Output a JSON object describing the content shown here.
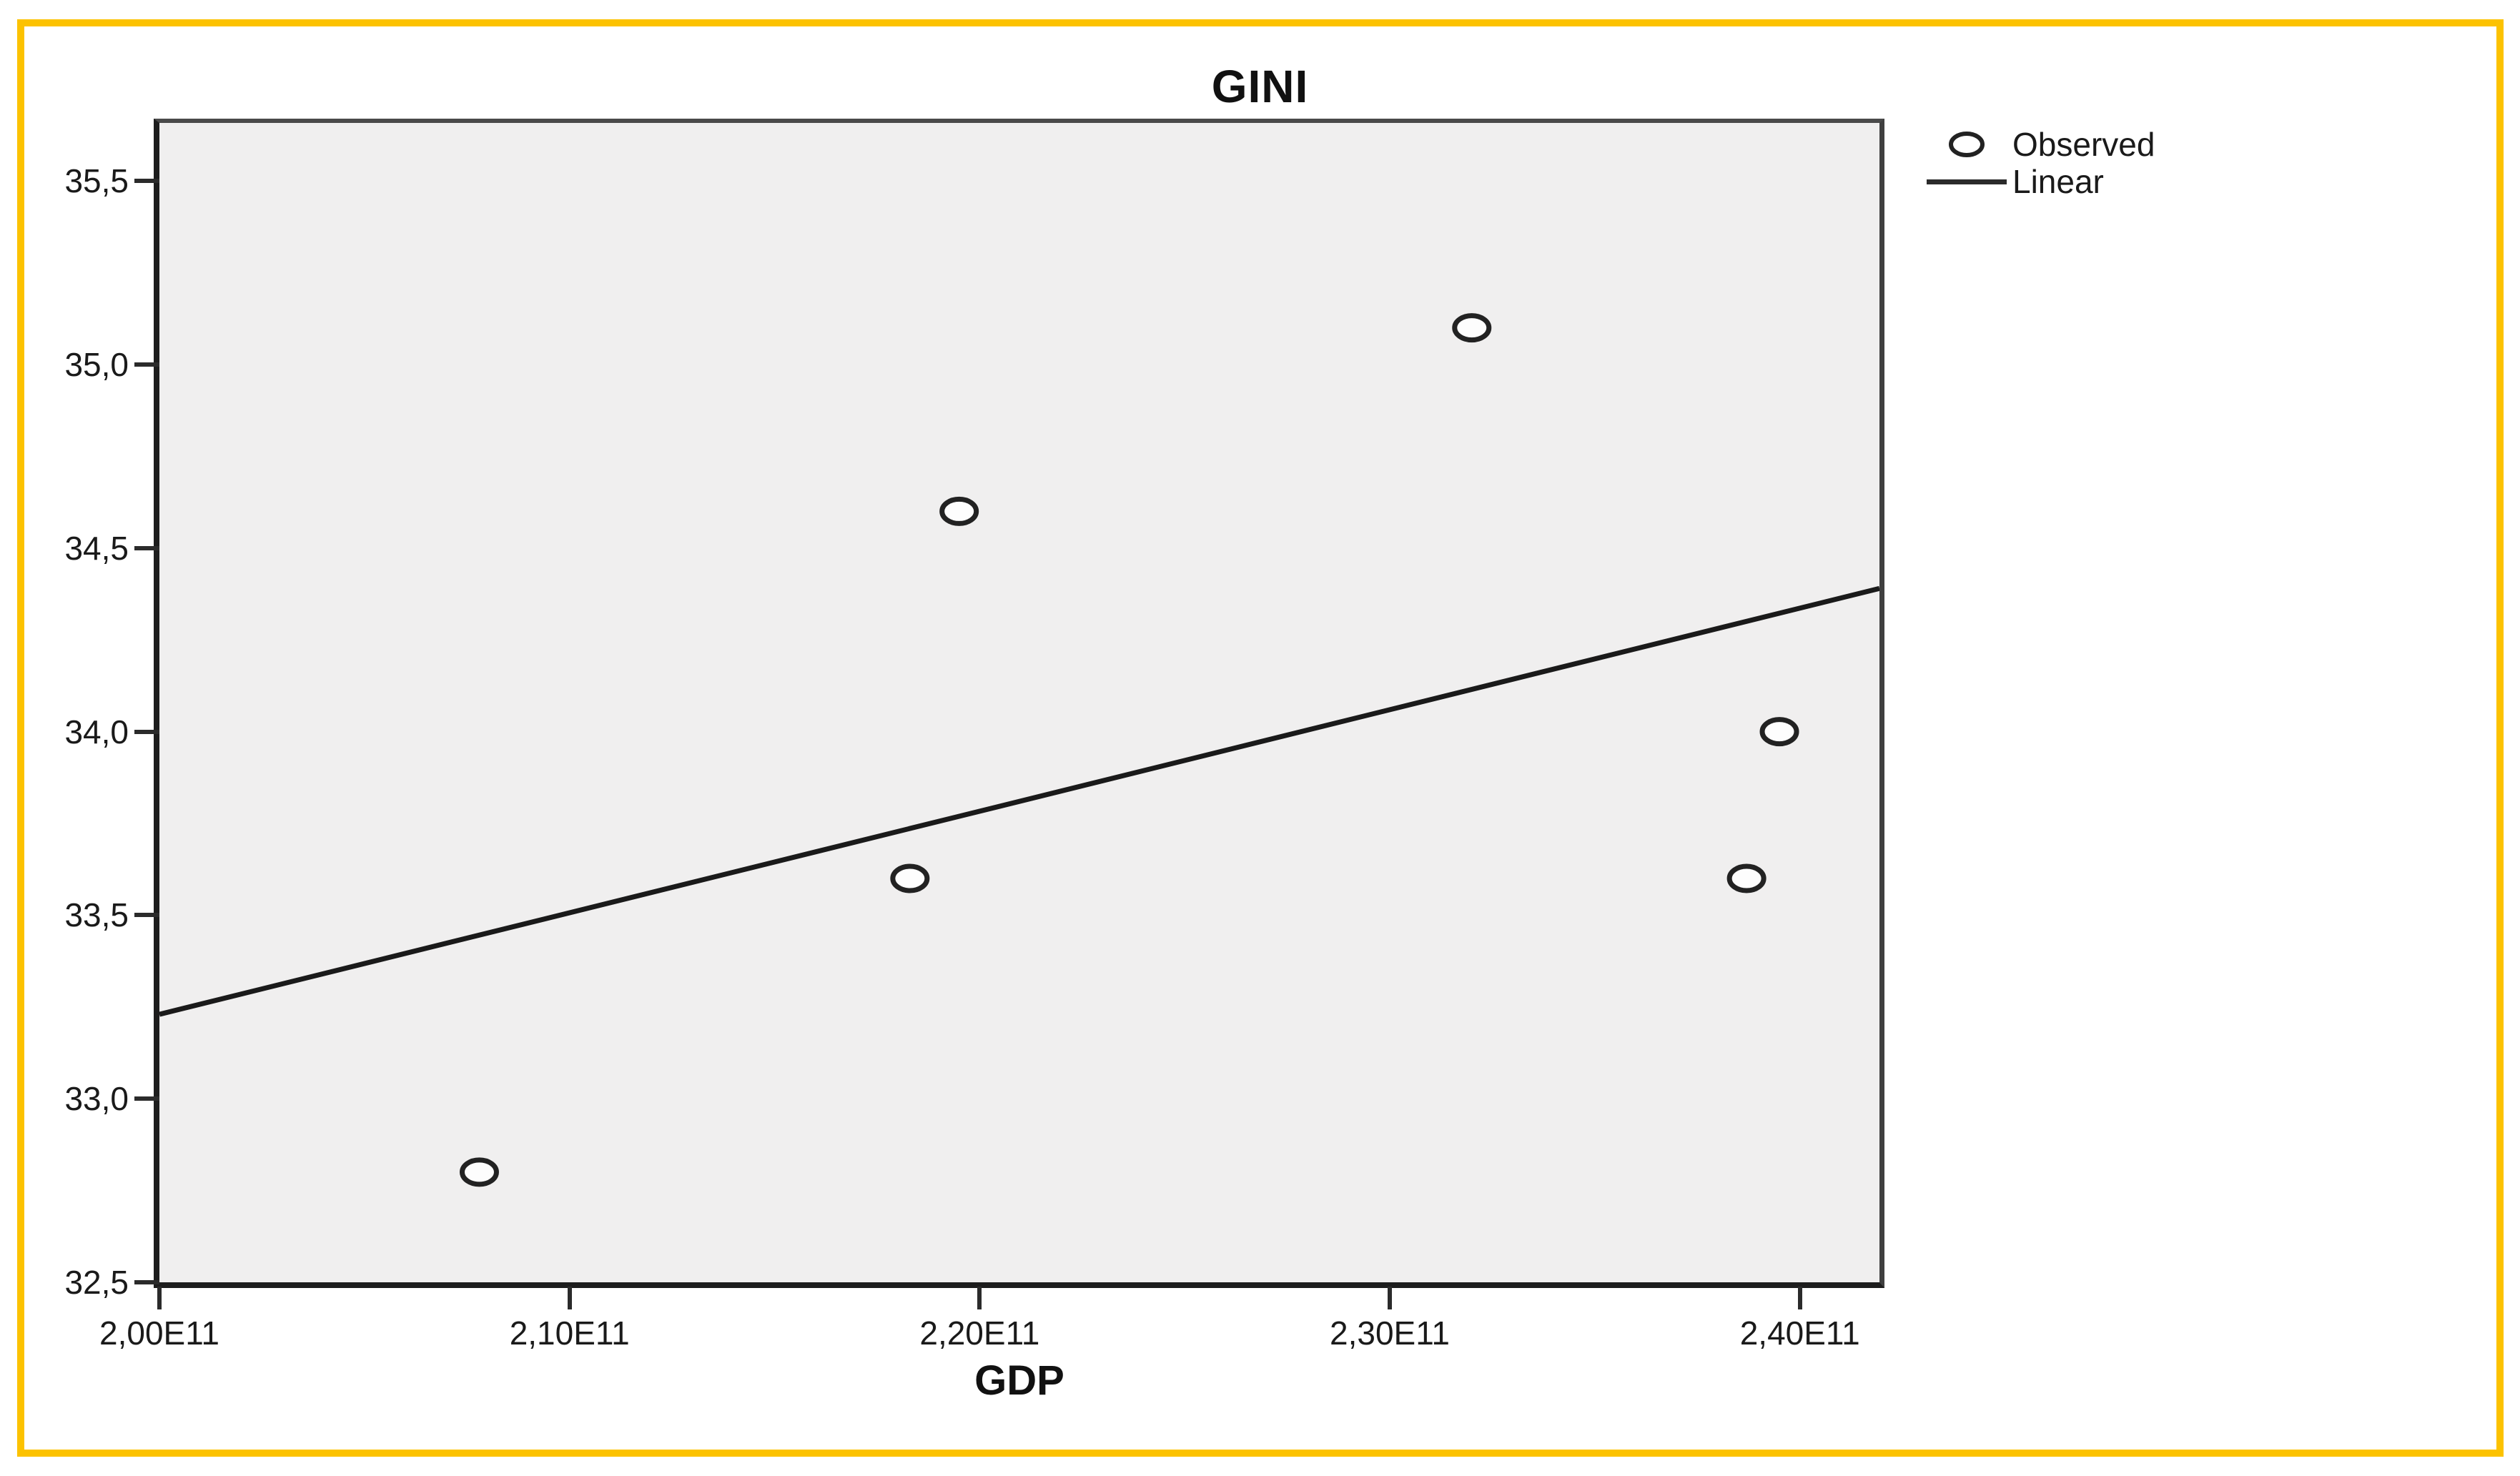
{
  "figure": {
    "border_color": "#FCC200",
    "background": "#FFFFFF",
    "plot_background": "#F0EFEF"
  },
  "chart": {
    "title": "GINI",
    "xlabel": "GDP"
  },
  "legend": {
    "items": [
      {
        "label": "Observed",
        "marker": "open-circle"
      },
      {
        "label": "Linear",
        "marker": "line"
      }
    ]
  },
  "chart_data": {
    "type": "scatter",
    "title": "GINI",
    "xlabel": "GDP",
    "ylabel": "",
    "x_unit": "E11",
    "decimal_separator": ",",
    "grid": false,
    "legend_position": "top-right-outside",
    "xlim_e11": [
      2.0,
      2.4194
    ],
    "ylim": [
      32.5,
      35.658
    ],
    "x_ticks": [
      {
        "value": 2.0,
        "label": "2,00E11"
      },
      {
        "value": 2.1,
        "label": "2,10E11"
      },
      {
        "value": 2.2,
        "label": "2,20E11"
      },
      {
        "value": 2.3,
        "label": "2,30E11"
      },
      {
        "value": 2.4,
        "label": "2,40E11"
      }
    ],
    "y_ticks": [
      {
        "value": 35.5,
        "label": "35,5"
      },
      {
        "value": 35.0,
        "label": "35,0"
      },
      {
        "value": 34.5,
        "label": "34,5"
      },
      {
        "value": 34.0,
        "label": "34,0"
      },
      {
        "value": 33.5,
        "label": "33,5"
      },
      {
        "value": 33.0,
        "label": "33,0"
      },
      {
        "value": 32.5,
        "label": "32,5"
      }
    ],
    "series": [
      {
        "name": "Observed",
        "type": "scatter",
        "marker": "open-circle",
        "marker_rx": 24,
        "marker_ry": 17,
        "marker_stroke": "#222222",
        "marker_fill": "#fdfdfd",
        "points_x_e11": [
          2.078,
          2.183,
          2.195,
          2.32,
          2.387,
          2.395
        ],
        "points_y": [
          32.8,
          33.6,
          34.6,
          35.1,
          33.6,
          34.0
        ]
      },
      {
        "name": "Linear",
        "type": "line",
        "color": "#1a1a1a",
        "endpoints_x_e11": [
          2.0,
          2.4194
        ],
        "endpoints_y": [
          33.23,
          34.39
        ]
      }
    ]
  }
}
